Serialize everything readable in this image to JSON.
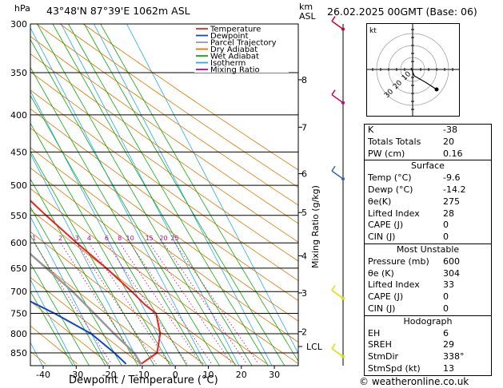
{
  "header": {
    "location": "43°48'N  87°39'E  1062m  ASL",
    "datetime": "26.02.2025  00GMT  (Base: 06)"
  },
  "axis": {
    "pressure_unit": "hPa",
    "alt_unit_km": "km",
    "alt_unit_asl": "ASL"
  },
  "chart_data": {
    "type": "line",
    "xlabel": "Dewpoint / Temperature (°C)",
    "ylabel": "hPa",
    "y2label": "Mixing Ratio (g/kg)",
    "x_ticks": [
      -40,
      -30,
      -20,
      -10,
      0,
      10,
      20,
      30
    ],
    "p_ticks": [
      300,
      350,
      400,
      450,
      500,
      550,
      600,
      650,
      700,
      750,
      800,
      850
    ],
    "km_ticks": [
      {
        "km": "8",
        "p": 358
      },
      {
        "km": "7",
        "p": 416
      },
      {
        "km": "6",
        "p": 482
      },
      {
        "km": "5",
        "p": 545
      },
      {
        "km": "4",
        "p": 625
      },
      {
        "km": "3",
        "p": 703
      },
      {
        "km": "2",
        "p": 795
      },
      {
        "km": "LCL",
        "p": 833
      }
    ],
    "mixing_ratio_labels": [
      "1",
      "2",
      "3",
      "4",
      "6",
      "8",
      "10",
      "15",
      "20",
      "25"
    ],
    "legend": [
      {
        "name": "Temperature",
        "color": "#ee2222"
      },
      {
        "name": "Dewpoint",
        "color": "#1144cc"
      },
      {
        "name": "Parcel Trajectory",
        "color": "#999999"
      },
      {
        "name": "Dry Adiabat",
        "color": "#dd7700"
      },
      {
        "name": "Wet Adiabat",
        "color": "#11aa11"
      },
      {
        "name": "Isotherm",
        "color": "#22aaee"
      },
      {
        "name": "Mixing Ratio",
        "color": "#cc0099"
      }
    ],
    "series": [
      {
        "name": "Temperature",
        "color": "#ee2222",
        "points": [
          [
            300,
            -46
          ],
          [
            350,
            -40
          ],
          [
            400,
            -33
          ],
          [
            450,
            -26
          ],
          [
            500,
            -20
          ],
          [
            550,
            -15
          ],
          [
            600,
            -10
          ],
          [
            650,
            -5
          ],
          [
            700,
            -1
          ],
          [
            730,
            1
          ],
          [
            750,
            3
          ],
          [
            800,
            1
          ],
          [
            850,
            -3
          ],
          [
            880,
            -9.6
          ]
        ]
      },
      {
        "name": "Dewpoint",
        "color": "#1144cc",
        "points": [
          [
            300,
            -62
          ],
          [
            350,
            -59
          ],
          [
            400,
            -57
          ],
          [
            450,
            -56
          ],
          [
            500,
            -50
          ],
          [
            550,
            -47
          ],
          [
            600,
            -46
          ],
          [
            650,
            -44
          ],
          [
            700,
            -38
          ],
          [
            750,
            -28
          ],
          [
            800,
            -20
          ],
          [
            850,
            -16
          ],
          [
            880,
            -14.2
          ]
        ]
      },
      {
        "name": "Parcel Trajectory",
        "color": "#999999",
        "points": [
          [
            300,
            -68
          ],
          [
            400,
            -52
          ],
          [
            500,
            -39
          ],
          [
            600,
            -28
          ],
          [
            700,
            -19
          ],
          [
            800,
            -13
          ],
          [
            850,
            -10
          ],
          [
            880,
            -9.6
          ]
        ]
      }
    ]
  },
  "wind_barbs": [
    {
      "p": 305,
      "color": "#cc0033"
    },
    {
      "p": 385,
      "color": "#cc0066"
    },
    {
      "p": 490,
      "color": "#3366aa"
    },
    {
      "p": 715,
      "color": "#dddd00"
    },
    {
      "p": 860,
      "color": "#dddd00"
    }
  ],
  "hodograph": {
    "label": "kt",
    "rings": [
      "10",
      "20",
      "30"
    ]
  },
  "indices": [
    {
      "k": "K",
      "v": "-38"
    },
    {
      "k": "Totals Totals",
      "v": "20"
    },
    {
      "k": "PW (cm)",
      "v": "0.16"
    }
  ],
  "surface": {
    "title": "Surface",
    "rows": [
      {
        "k": "Temp (°C)",
        "v": "-9.6"
      },
      {
        "k": "Dewp (°C)",
        "v": "-14.2"
      },
      {
        "k": "θe(K)",
        "v": "275"
      },
      {
        "k": "Lifted Index",
        "v": "28"
      },
      {
        "k": "CAPE (J)",
        "v": "0"
      },
      {
        "k": "CIN (J)",
        "v": "0"
      }
    ]
  },
  "most_unstable": {
    "title": "Most Unstable",
    "rows": [
      {
        "k": "Pressure (mb)",
        "v": "600"
      },
      {
        "k": "θe (K)",
        "v": "304"
      },
      {
        "k": "Lifted Index",
        "v": "33"
      },
      {
        "k": "CAPE (J)",
        "v": "0"
      },
      {
        "k": "CIN (J)",
        "v": "0"
      }
    ]
  },
  "hodograph_table": {
    "title": "Hodograph",
    "rows": [
      {
        "k": "EH",
        "v": "6"
      },
      {
        "k": "SREH",
        "v": "29"
      },
      {
        "k": "StmDir",
        "v": "338°"
      },
      {
        "k": "StmSpd (kt)",
        "v": "13"
      }
    ]
  },
  "credit": "© weatheronline.co.uk"
}
